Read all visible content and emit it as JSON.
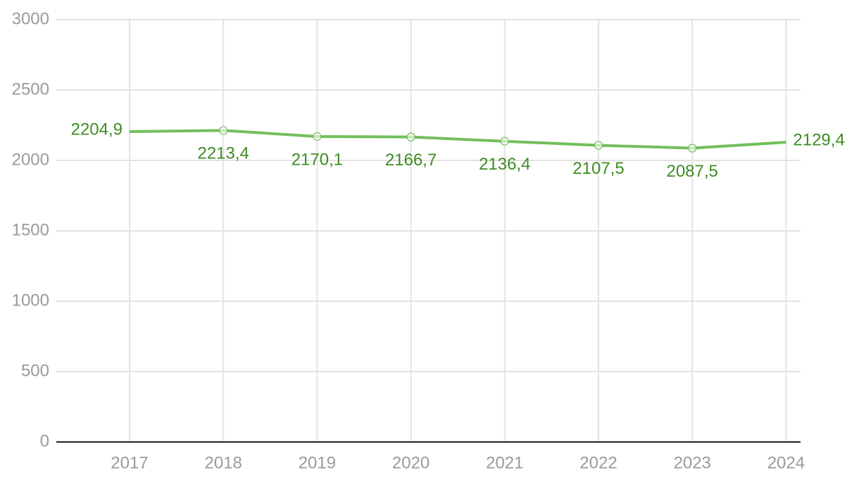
{
  "chart_data": {
    "type": "line",
    "categories": [
      "2017",
      "2018",
      "2019",
      "2020",
      "2021",
      "2022",
      "2023",
      "2024"
    ],
    "values": [
      2204.9,
      2213.4,
      2170.1,
      2166.7,
      2136.4,
      2107.5,
      2087.5,
      2129.4
    ],
    "value_labels": [
      "2204,9",
      "2213,4",
      "2170,1",
      "2166,7",
      "2136,4",
      "2107,5",
      "2087,5",
      "2129,4"
    ],
    "color": "#72bf5a",
    "ylim": [
      0,
      3000
    ],
    "yticks": [
      0,
      500,
      1000,
      1500,
      2000,
      2500,
      3000
    ],
    "grid": true
  }
}
